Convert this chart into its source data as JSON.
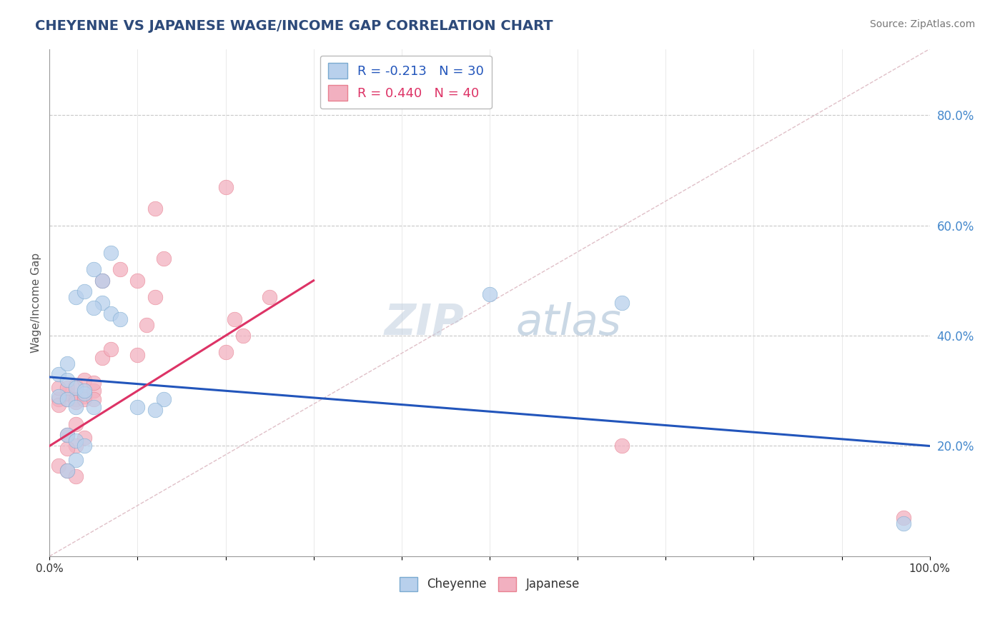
{
  "title": "CHEYENNE VS JAPANESE WAGE/INCOME GAP CORRELATION CHART",
  "source_text": "Source: ZipAtlas.com",
  "ylabel": "Wage/Income Gap",
  "xlim": [
    0.0,
    1.0
  ],
  "ylim": [
    0.0,
    0.92
  ],
  "yticks": [
    0.2,
    0.4,
    0.6,
    0.8
  ],
  "ytick_labels": [
    "20.0%",
    "40.0%",
    "60.0%",
    "80.0%"
  ],
  "bg_color": "#ffffff",
  "grid_color": "#c8c8c8",
  "title_color": "#2d4a7a",
  "source_color": "#777777",
  "cheyenne_color": "#b8d0ec",
  "japanese_color": "#f2b0c0",
  "cheyenne_edge_color": "#7aaad0",
  "japanese_edge_color": "#e88090",
  "cheyenne_line_color": "#2255bb",
  "japanese_line_color": "#dd3366",
  "diag_line_color": "#e0c0c8",
  "legend_r_cheyenne": "R = -0.213",
  "legend_n_cheyenne": "N = 30",
  "legend_r_japanese": "R = 0.440",
  "legend_n_japanese": "N = 40",
  "cheyenne_line_x0": 0.0,
  "cheyenne_line_y0": 0.325,
  "cheyenne_line_x1": 1.0,
  "cheyenne_line_y1": 0.2,
  "japanese_line_x0": 0.0,
  "japanese_line_y0": 0.2,
  "japanese_line_x1": 0.3,
  "japanese_line_y1": 0.5,
  "cheyenne_x": [
    0.01,
    0.02,
    0.01,
    0.03,
    0.02,
    0.04,
    0.03,
    0.05,
    0.04,
    0.02,
    0.03,
    0.06,
    0.07,
    0.05,
    0.04,
    0.08,
    0.06,
    0.05,
    0.07,
    0.13,
    0.1,
    0.12,
    0.5,
    0.65,
    0.02,
    0.03,
    0.04,
    0.03,
    0.02,
    0.97
  ],
  "cheyenne_y": [
    0.33,
    0.32,
    0.29,
    0.305,
    0.285,
    0.295,
    0.27,
    0.27,
    0.3,
    0.35,
    0.47,
    0.46,
    0.44,
    0.45,
    0.48,
    0.43,
    0.5,
    0.52,
    0.55,
    0.285,
    0.27,
    0.265,
    0.475,
    0.46,
    0.22,
    0.21,
    0.2,
    0.175,
    0.155,
    0.06
  ],
  "japanese_x": [
    0.01,
    0.01,
    0.02,
    0.02,
    0.03,
    0.03,
    0.04,
    0.04,
    0.05,
    0.05,
    0.01,
    0.02,
    0.03,
    0.04,
    0.05,
    0.06,
    0.07,
    0.06,
    0.08,
    0.1,
    0.11,
    0.12,
    0.1,
    0.13,
    0.2,
    0.22,
    0.21,
    0.25,
    0.03,
    0.02,
    0.04,
    0.03,
    0.02,
    0.01,
    0.02,
    0.03,
    0.65,
    0.2,
    0.12,
    0.97
  ],
  "japanese_y": [
    0.285,
    0.275,
    0.285,
    0.295,
    0.285,
    0.28,
    0.29,
    0.285,
    0.3,
    0.285,
    0.305,
    0.305,
    0.31,
    0.32,
    0.315,
    0.36,
    0.375,
    0.5,
    0.52,
    0.365,
    0.42,
    0.47,
    0.5,
    0.54,
    0.37,
    0.4,
    0.43,
    0.47,
    0.24,
    0.22,
    0.215,
    0.2,
    0.195,
    0.165,
    0.155,
    0.145,
    0.2,
    0.67,
    0.63,
    0.07
  ]
}
